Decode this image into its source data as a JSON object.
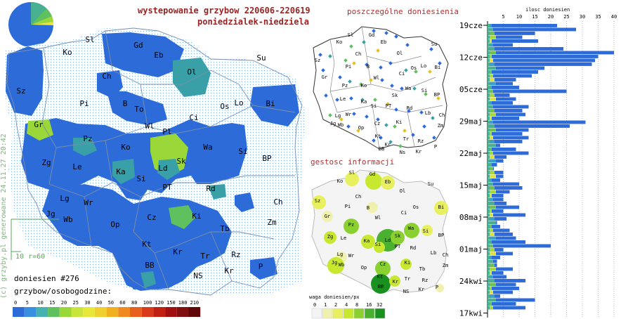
{
  "header": {
    "title": "wystepowanie grzybow 220606-220619",
    "days": "poniedzialek-niedziela"
  },
  "main_map": {
    "scale_label": "10 r=60",
    "count_label": "doniesien #276",
    "legend_title": "grzybow/osobogodzine:",
    "legend_ticks": [
      "0",
      "5",
      "10",
      "15",
      "20",
      "25",
      "30",
      "40",
      "50",
      "60",
      "80",
      "100",
      "120",
      "150",
      "180",
      "210"
    ],
    "legend_colors": [
      "#2d6cd8",
      "#3a8fe0",
      "#47b0b0",
      "#5fc05f",
      "#9ad83a",
      "#c9e43a",
      "#e8e83a",
      "#f0d030",
      "#f0b020",
      "#f08a20",
      "#e86020",
      "#d83a1a",
      "#c02010",
      "#a01010",
      "#801010",
      "#600808"
    ],
    "cities": [
      {
        "code": "Ko",
        "x": 96,
        "y": 78
      },
      {
        "code": "Sl",
        "x": 128,
        "y": 60
      },
      {
        "code": "Gd",
        "x": 197,
        "y": 68
      },
      {
        "code": "Eb",
        "x": 226,
        "y": 82
      },
      {
        "code": "Su",
        "x": 372,
        "y": 86
      },
      {
        "code": "Ol",
        "x": 273,
        "y": 106
      },
      {
        "code": "Ch",
        "x": 152,
        "y": 112
      },
      {
        "code": "Sz",
        "x": 30,
        "y": 133
      },
      {
        "code": "Pi",
        "x": 120,
        "y": 151
      },
      {
        "code": "B",
        "x": 178,
        "y": 151
      },
      {
        "code": "To",
        "x": 198,
        "y": 159
      },
      {
        "code": "Os",
        "x": 320,
        "y": 155
      },
      {
        "code": "Lo",
        "x": 340,
        "y": 150
      },
      {
        "code": "Bi",
        "x": 385,
        "y": 151
      },
      {
        "code": "Gr",
        "x": 55,
        "y": 181
      },
      {
        "code": "Wl",
        "x": 213,
        "y": 183
      },
      {
        "code": "Ci",
        "x": 276,
        "y": 171
      },
      {
        "code": "Pl",
        "x": 238,
        "y": 191
      },
      {
        "code": "Pz",
        "x": 125,
        "y": 201
      },
      {
        "code": "Ko",
        "x": 179,
        "y": 213
      },
      {
        "code": "Wa",
        "x": 296,
        "y": 213
      },
      {
        "code": "Si",
        "x": 346,
        "y": 219
      },
      {
        "code": "Zg",
        "x": 66,
        "y": 235
      },
      {
        "code": "Le",
        "x": 110,
        "y": 241
      },
      {
        "code": "Sk",
        "x": 258,
        "y": 233
      },
      {
        "code": "Ka",
        "x": 172,
        "y": 248
      },
      {
        "code": "Ld",
        "x": 232,
        "y": 243
      },
      {
        "code": "BP",
        "x": 380,
        "y": 229
      },
      {
        "code": "Si",
        "x": 201,
        "y": 258
      },
      {
        "code": "PT",
        "x": 238,
        "y": 270
      },
      {
        "code": "Rd",
        "x": 300,
        "y": 272
      },
      {
        "code": "Lg",
        "x": 92,
        "y": 286
      },
      {
        "code": "Wr",
        "x": 126,
        "y": 292
      },
      {
        "code": "Ch",
        "x": 396,
        "y": 291
      },
      {
        "code": "Jg",
        "x": 72,
        "y": 308
      },
      {
        "code": "Wb",
        "x": 97,
        "y": 316
      },
      {
        "code": "Cz",
        "x": 216,
        "y": 313
      },
      {
        "code": "Ki",
        "x": 280,
        "y": 311
      },
      {
        "code": "Zm",
        "x": 387,
        "y": 320
      },
      {
        "code": "Op",
        "x": 164,
        "y": 323
      },
      {
        "code": "Tb",
        "x": 320,
        "y": 329
      },
      {
        "code": "Kt",
        "x": 209,
        "y": 351
      },
      {
        "code": "Kr",
        "x": 253,
        "y": 362
      },
      {
        "code": "Rz",
        "x": 336,
        "y": 366
      },
      {
        "code": "Tr",
        "x": 292,
        "y": 368
      },
      {
        "code": "BB",
        "x": 213,
        "y": 381
      },
      {
        "code": "Kr",
        "x": 326,
        "y": 389
      },
      {
        "code": "P",
        "x": 371,
        "y": 383
      },
      {
        "code": "NS",
        "x": 282,
        "y": 396
      }
    ]
  },
  "watermark": "(c) grzyby.pl generowane 24.11.27 20:42",
  "reports_map": {
    "title": "poszczególne doniesienia",
    "cities": [
      {
        "code": "Sl",
        "x": 499,
        "y": 42
      },
      {
        "code": "Gd",
        "x": 529,
        "y": 42
      },
      {
        "code": "Ko",
        "x": 483,
        "y": 52
      },
      {
        "code": "Eb",
        "x": 546,
        "y": 52
      },
      {
        "code": "Su",
        "x": 618,
        "y": 55
      },
      {
        "code": "Ol",
        "x": 569,
        "y": 68
      },
      {
        "code": "Ch",
        "x": 510,
        "y": 69
      },
      {
        "code": "Sz",
        "x": 452,
        "y": 78
      },
      {
        "code": "Pi",
        "x": 496,
        "y": 87
      },
      {
        "code": "B",
        "x": 524,
        "y": 87
      },
      {
        "code": "Os",
        "x": 589,
        "y": 89
      },
      {
        "code": "Lo",
        "x": 603,
        "y": 86
      },
      {
        "code": "Bi",
        "x": 623,
        "y": 88
      },
      {
        "code": "Ci",
        "x": 572,
        "y": 97
      },
      {
        "code": "Gr",
        "x": 462,
        "y": 102
      },
      {
        "code": "Wl",
        "x": 536,
        "y": 103
      },
      {
        "code": "Pz",
        "x": 491,
        "y": 114
      },
      {
        "code": "Ko",
        "x": 518,
        "y": 114
      },
      {
        "code": "Wa",
        "x": 581,
        "y": 118
      },
      {
        "code": "Le",
        "x": 488,
        "y": 133
      },
      {
        "code": "Sk",
        "x": 562,
        "y": 128
      },
      {
        "code": "Si",
        "x": 604,
        "y": 121
      },
      {
        "code": "Ka",
        "x": 518,
        "y": 137
      },
      {
        "code": "Si",
        "x": 532,
        "y": 143
      },
      {
        "code": "BP",
        "x": 622,
        "y": 127
      },
      {
        "code": "PT",
        "x": 553,
        "y": 143
      },
      {
        "code": "Rd",
        "x": 583,
        "y": 146
      },
      {
        "code": "Lg",
        "x": 481,
        "y": 157
      },
      {
        "code": "Wr",
        "x": 496,
        "y": 155
      },
      {
        "code": "Lb",
        "x": 609,
        "y": 153
      },
      {
        "code": "Ch",
        "x": 629,
        "y": 156
      },
      {
        "code": "Jg",
        "x": 474,
        "y": 168
      },
      {
        "code": "Wb",
        "x": 485,
        "y": 170
      },
      {
        "code": "Op",
        "x": 514,
        "y": 174
      },
      {
        "code": "Cz",
        "x": 537,
        "y": 168
      },
      {
        "code": "Ki",
        "x": 568,
        "y": 166
      },
      {
        "code": "Zm",
        "x": 627,
        "y": 171
      },
      {
        "code": "Kt",
        "x": 538,
        "y": 186
      },
      {
        "code": "Tr",
        "x": 578,
        "y": 190
      },
      {
        "code": "Rz",
        "x": 599,
        "y": 193
      },
      {
        "code": "Kr",
        "x": 552,
        "y": 198
      },
      {
        "code": "BB",
        "x": 543,
        "y": 204
      },
      {
        "code": "Ns",
        "x": 573,
        "y": 209
      },
      {
        "code": "Kr",
        "x": 596,
        "y": 208
      },
      {
        "code": "P",
        "x": 620,
        "y": 201
      }
    ]
  },
  "density_map": {
    "title": "gestosc informacji",
    "legend_title": "waga doniesien/px",
    "legend_ticks": [
      "0",
      "1",
      "2",
      "4",
      "8",
      "16",
      "32"
    ],
    "legend_colors": [
      "#f4f4f4",
      "#f0f0b0",
      "#e8f060",
      "#c8e830",
      "#8ad030",
      "#4ab030",
      "#1a9020"
    ],
    "cities": [
      {
        "code": "Sl",
        "x": 501,
        "y": 248
      },
      {
        "code": "Gd",
        "x": 530,
        "y": 250
      },
      {
        "code": "Ko",
        "x": 484,
        "y": 260
      },
      {
        "code": "Eb",
        "x": 552,
        "y": 261
      },
      {
        "code": "Su",
        "x": 613,
        "y": 264
      },
      {
        "code": "Ol",
        "x": 573,
        "y": 274
      },
      {
        "code": "Ch",
        "x": 510,
        "y": 282
      },
      {
        "code": "Sz",
        "x": 452,
        "y": 288
      },
      {
        "code": "Pi",
        "x": 495,
        "y": 296
      },
      {
        "code": "B",
        "x": 524,
        "y": 298
      },
      {
        "code": "Os",
        "x": 592,
        "y": 297
      },
      {
        "code": "Bi",
        "x": 628,
        "y": 297
      },
      {
        "code": "Ci",
        "x": 575,
        "y": 305
      },
      {
        "code": "Gr",
        "x": 466,
        "y": 310
      },
      {
        "code": "Wl",
        "x": 538,
        "y": 312
      },
      {
        "code": "Pz",
        "x": 500,
        "y": 322
      },
      {
        "code": "Wa",
        "x": 585,
        "y": 327
      },
      {
        "code": "Si",
        "x": 606,
        "y": 331
      },
      {
        "code": "Zg",
        "x": 470,
        "y": 339
      },
      {
        "code": "Le",
        "x": 489,
        "y": 341
      },
      {
        "code": "Sk",
        "x": 566,
        "y": 338
      },
      {
        "code": "Ka",
        "x": 522,
        "y": 345
      },
      {
        "code": "Ld",
        "x": 552,
        "y": 344
      },
      {
        "code": "BP",
        "x": 628,
        "y": 337
      },
      {
        "code": "Si",
        "x": 538,
        "y": 350
      },
      {
        "code": "PT",
        "x": 566,
        "y": 353
      },
      {
        "code": "Rd",
        "x": 588,
        "y": 355
      },
      {
        "code": "Lg",
        "x": 484,
        "y": 364
      },
      {
        "code": "Wr",
        "x": 500,
        "y": 366
      },
      {
        "code": "Lb",
        "x": 617,
        "y": 362
      },
      {
        "code": "Ch",
        "x": 634,
        "y": 365
      },
      {
        "code": "Jg",
        "x": 476,
        "y": 376
      },
      {
        "code": "Wb",
        "x": 486,
        "y": 379
      },
      {
        "code": "Op",
        "x": 518,
        "y": 383
      },
      {
        "code": "Cz",
        "x": 545,
        "y": 378
      },
      {
        "code": "Ki",
        "x": 580,
        "y": 376
      },
      {
        "code": "Zm",
        "x": 634,
        "y": 380
      },
      {
        "code": "Tb",
        "x": 601,
        "y": 385
      },
      {
        "code": "Kt",
        "x": 541,
        "y": 396
      },
      {
        "code": "Tr",
        "x": 580,
        "y": 399
      },
      {
        "code": "Rz",
        "x": 605,
        "y": 401
      },
      {
        "code": "BB",
        "x": 542,
        "y": 410
      },
      {
        "code": "Kr",
        "x": 563,
        "y": 403
      },
      {
        "code": "Kr",
        "x": 600,
        "y": 414
      },
      {
        "code": "NS",
        "x": 578,
        "y": 417
      },
      {
        "code": "P",
        "x": 622,
        "y": 411
      }
    ]
  },
  "chart_data": {
    "type": "bar",
    "orientation": "horizontal",
    "title": "ilosc doniesien",
    "xlim": [
      0,
      42
    ],
    "x_ticks": [
      "5",
      "10",
      "15",
      "20",
      "25",
      "30",
      "35",
      "40"
    ],
    "date_labels": [
      "19cze",
      "12cze",
      "05cze",
      "29maj",
      "22maj",
      "15maj",
      "08maj",
      "01maj",
      "24kwi",
      "17kwi"
    ],
    "series_colors": [
      "#2d6cd8",
      "#3aa0c8",
      "#48b090",
      "#70c050",
      "#a8d838",
      "#e0e040",
      "#f0a020"
    ],
    "values": [
      22,
      28,
      15,
      11,
      16,
      8,
      24,
      40,
      35,
      34,
      33,
      18,
      16,
      14,
      9,
      8,
      10,
      25,
      7,
      9,
      8,
      13,
      11,
      12,
      10,
      31,
      26,
      13,
      11,
      13,
      11,
      4,
      9,
      13,
      6,
      5,
      3,
      2,
      5,
      5,
      4,
      10,
      11,
      7,
      5,
      5,
      6,
      10,
      5,
      12,
      6,
      3,
      4,
      7,
      8,
      9,
      12,
      20,
      5,
      8,
      4,
      3,
      3,
      8,
      5,
      6,
      12,
      9,
      10,
      8,
      4,
      15,
      9,
      12
    ]
  }
}
